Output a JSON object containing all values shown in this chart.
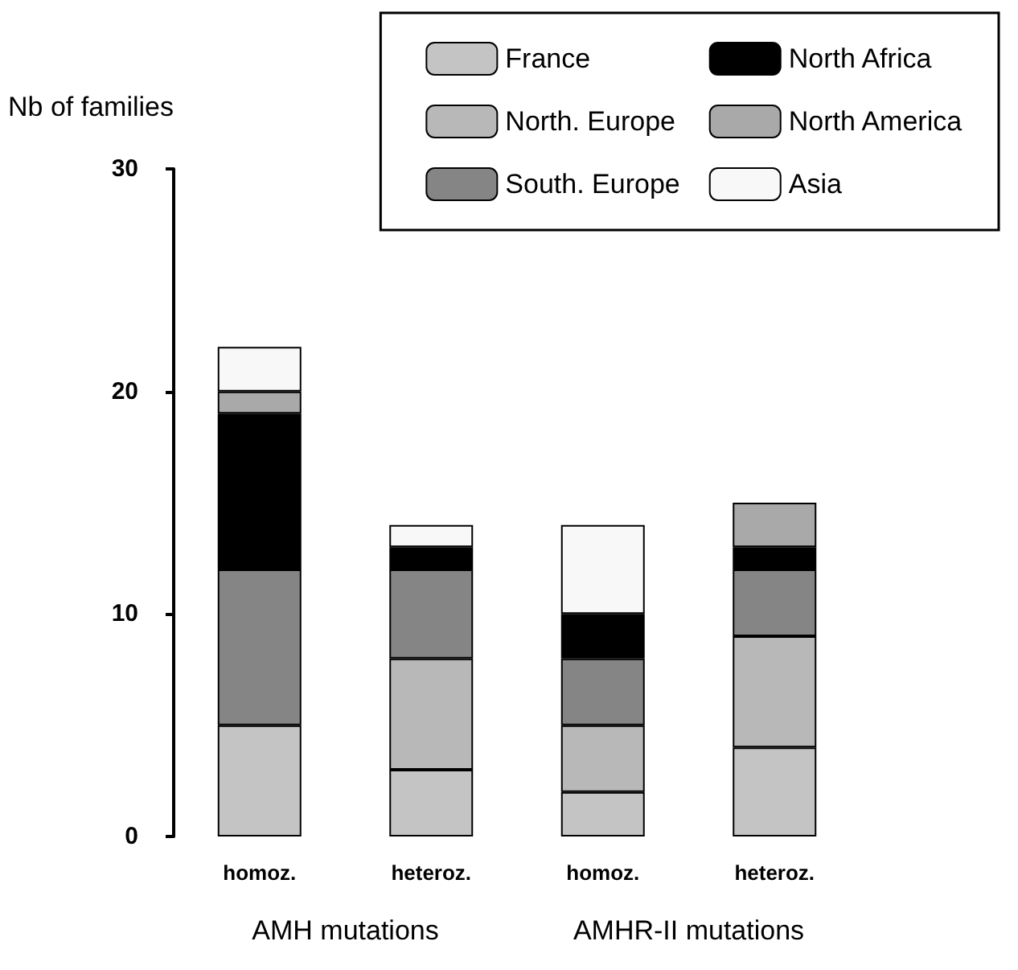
{
  "chart_data": {
    "type": "bar",
    "stacked": true,
    "ylabel": "Nb of families",
    "categories": [
      "homoz.",
      "heteroz.",
      "homoz.",
      "heteroz."
    ],
    "series": [
      {
        "name": "France",
        "color": "#c4c4c4",
        "values": [
          5,
          3,
          2,
          4
        ]
      },
      {
        "name": "North. Europe",
        "color": "#b8b8b8",
        "values": [
          0,
          5,
          3,
          5
        ]
      },
      {
        "name": "South. Europe",
        "color": "#858585",
        "values": [
          7,
          4,
          3,
          3
        ]
      },
      {
        "name": "North Africa",
        "color": "#000000",
        "values": [
          7,
          1,
          2,
          1
        ]
      },
      {
        "name": "North America",
        "color": "#a9a9a9",
        "values": [
          1,
          0,
          0,
          2
        ]
      },
      {
        "name": "Asia",
        "color": "#f8f8f8",
        "values": [
          2,
          1,
          4,
          0
        ]
      }
    ],
    "ylim": [
      0,
      30
    ],
    "yticks": [
      0,
      10,
      20,
      30
    ],
    "grid": false,
    "legend": "top right",
    "annotations": [
      "AMH mutations",
      "AMHR-II mutations"
    ]
  }
}
